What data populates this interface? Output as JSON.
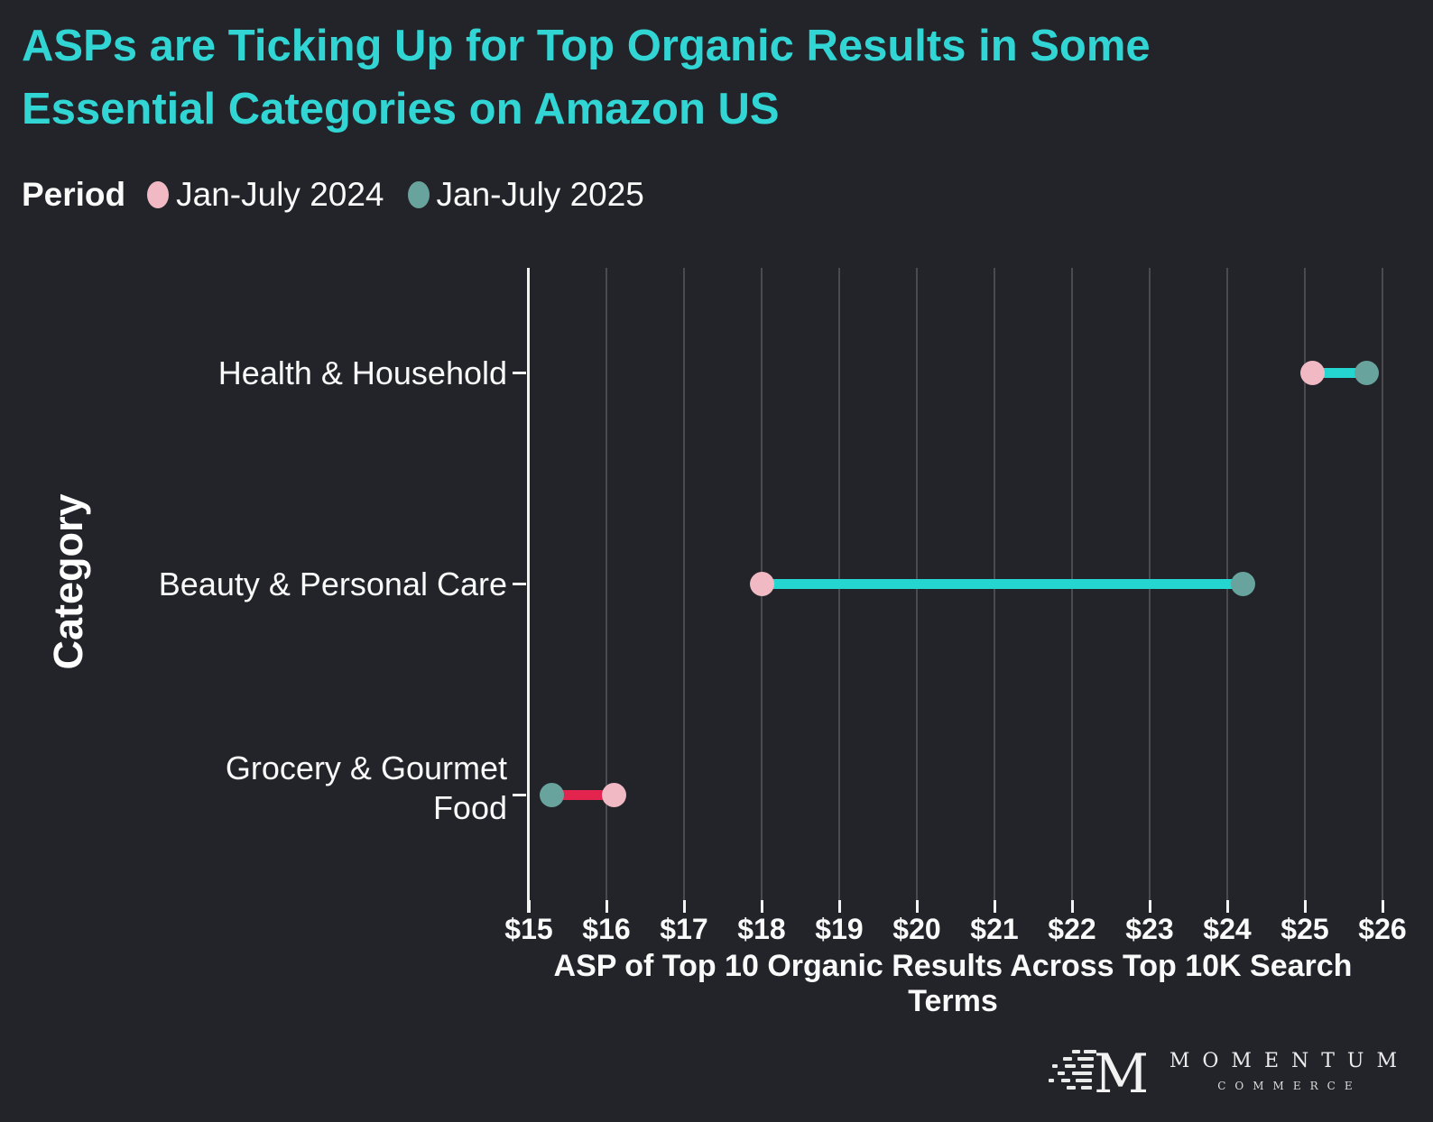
{
  "title": {
    "line1": "ASPs are Ticking Up for Top Organic Results in Some",
    "line2": "Essential Categories on Amazon US"
  },
  "legend": {
    "title": "Period",
    "items": [
      {
        "label": "Jan-July 2024",
        "color": "#f0b9c4"
      },
      {
        "label": "Jan-July 2025",
        "color": "#68a49d"
      }
    ]
  },
  "chart_data": {
    "type": "scatter",
    "variant": "dumbbell",
    "title": "ASPs are Ticking Up for Top Organic Results in Some Essential Categories on Amazon US",
    "categories": [
      "Health & Household",
      "Beauty & Personal Care",
      "Grocery & Gourmet Food"
    ],
    "series": [
      {
        "name": "Jan-July 2024",
        "color": "#f0b9c4",
        "values": [
          25.1,
          18.0,
          16.1
        ]
      },
      {
        "name": "Jan-July 2025",
        "color": "#68a49d",
        "values": [
          25.8,
          24.2,
          15.3
        ]
      }
    ],
    "xlabel": "ASP of Top 10 Organic Results Across Top 10K Search Terms",
    "ylabel": "Category",
    "xlim": [
      15,
      26
    ],
    "x_tick_labels": [
      "$15",
      "$16",
      "$17",
      "$18",
      "$19",
      "$20",
      "$21",
      "$22",
      "$23",
      "$24",
      "$25",
      "$26"
    ],
    "grid": "vertical-gridlines",
    "legend_position": "top-left",
    "connector_increase_color": "#25d6d0",
    "connector_decrease_color": "#e3244e"
  },
  "colors": {
    "background": "#23232a",
    "title": "#31d6d4",
    "text": "#fafafa",
    "gridline": "#4a4a50",
    "axis": "#f2f2f2"
  },
  "logo": {
    "name": "MOMENTUM",
    "subtitle": "COMMERCE"
  }
}
